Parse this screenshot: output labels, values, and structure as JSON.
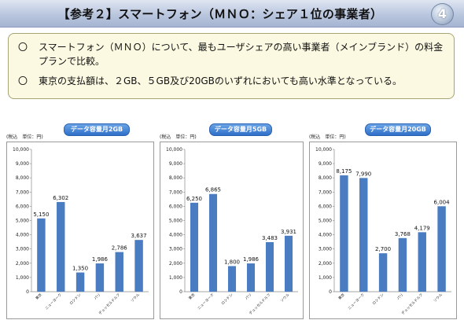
{
  "header": {
    "title": "【参考２】スマートフォン（ＭＮＯ：シェア１位の事業者）",
    "page_number": "4"
  },
  "summary": {
    "bullets": [
      {
        "mark": "〇",
        "text": "スマートフォン（ＭＮＯ）について、最もユーザシェアの高い事業者（メインブランド）の料金プランで比較。"
      },
      {
        "mark": "〇",
        "text": "東京の支払額は、２GB、５GB及び20GBのいずれにおいても高い水準となっている。"
      }
    ]
  },
  "colors": {
    "bar": "#4a7cc1",
    "pill": "#2f6fc8",
    "summary_bg": "#fbf9e1"
  },
  "chart_data": [
    {
      "type": "bar",
      "title": "データ容量月2GB",
      "unit_label": "(税込　単位：円)",
      "categories": [
        "東京",
        "ニューヨーク",
        "ロンドン",
        "パリ",
        "デュッセルドルフ",
        "ソウル"
      ],
      "values": [
        5150,
        6302,
        1350,
        1986,
        2786,
        3637
      ],
      "value_labels": [
        "5,150",
        "6,302",
        "1,350",
        "1,986",
        "2,786",
        "3,637"
      ],
      "ylim": [
        0,
        10000
      ],
      "yticks": [
        "0",
        "1,000",
        "2,000",
        "3,000",
        "4,000",
        "5,000",
        "6,000",
        "7,000",
        "8,000",
        "9,000",
        "10,000"
      ],
      "grid": false
    },
    {
      "type": "bar",
      "title": "データ容量月5GB",
      "unit_label": "(税込　単位：円)",
      "categories": [
        "東京",
        "ニューヨーク",
        "ロンドン",
        "パリ",
        "デュッセルドルフ",
        "ソウル"
      ],
      "values": [
        6250,
        6865,
        1800,
        1986,
        3483,
        3931
      ],
      "value_labels": [
        "6,250",
        "6,865",
        "1,800",
        "1,986",
        "3,483",
        "3,931"
      ],
      "ylim": [
        0,
        10000
      ],
      "yticks": [
        "0",
        "1,000",
        "2,000",
        "3,000",
        "4,000",
        "5,000",
        "6,000",
        "7,000",
        "8,000",
        "9,000",
        "10,000"
      ],
      "grid": false
    },
    {
      "type": "bar",
      "title": "データ容量月20GB",
      "unit_label": "(税込　単位：円)",
      "categories": [
        "東京",
        "ニューヨーク",
        "ロンドン",
        "パリ",
        "デュッセルドルフ",
        "ソウル"
      ],
      "values": [
        8175,
        7990,
        2700,
        3768,
        4179,
        6004
      ],
      "value_labels": [
        "8,175",
        "7,990",
        "2,700",
        "3,768",
        "4,179",
        "6,004"
      ],
      "ylim": [
        0,
        10000
      ],
      "yticks": [
        "0",
        "1,000",
        "2,000",
        "3,000",
        "4,000",
        "5,000",
        "6,000",
        "7,000",
        "8,000",
        "9,000",
        "10,000"
      ],
      "grid": false
    }
  ]
}
